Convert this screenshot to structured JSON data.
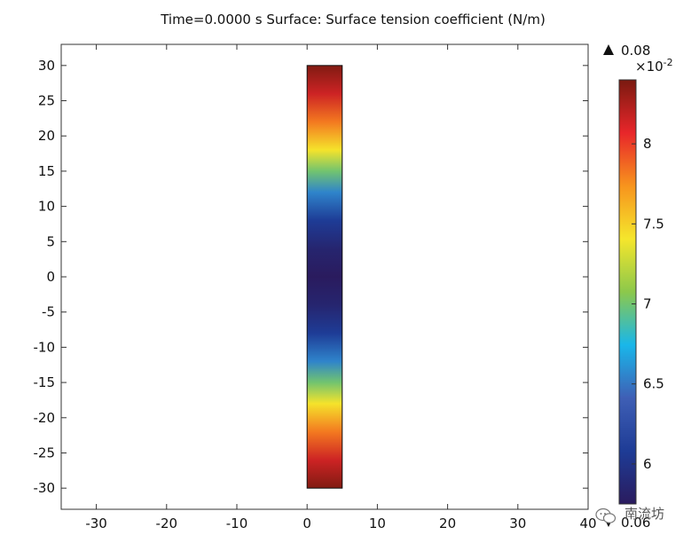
{
  "chart_data": {
    "type": "heatmap",
    "title": "Time=0.0000 s   Surface: Surface tension coefficient (N/m)",
    "x_ticks": [
      -30,
      -20,
      -10,
      0,
      10,
      20,
      30,
      40
    ],
    "y_ticks": [
      30,
      25,
      20,
      15,
      10,
      5,
      0,
      -5,
      -10,
      -15,
      -20,
      -25,
      -30
    ],
    "x_range": [
      -35,
      40
    ],
    "y_range": [
      -33,
      33
    ],
    "domain": {
      "x": [
        0,
        5
      ],
      "y": [
        -30,
        30
      ]
    },
    "field_profile": {
      "y": [
        -30,
        -26,
        -22,
        -18,
        -15,
        -12,
        -8,
        -4,
        0,
        4,
        8,
        12,
        15,
        18,
        22,
        26,
        30
      ],
      "value": [
        0.0838,
        0.0815,
        0.0782,
        0.0742,
        0.07,
        0.0655,
        0.0608,
        0.0585,
        0.0575,
        0.0585,
        0.0608,
        0.0655,
        0.07,
        0.0742,
        0.0782,
        0.0815,
        0.0838
      ]
    },
    "colorbar": {
      "max_label": "0.08",
      "min_label": "0.06",
      "exponent_label": "×10",
      "exponent_power": "-2",
      "ticks": [
        "8",
        "7.5",
        "7",
        "6.5",
        "6"
      ],
      "tick_values": [
        8,
        7.5,
        7,
        6.5,
        6
      ],
      "range": [
        5.75,
        8.4
      ],
      "colormap": "rainbow",
      "max_marker": "up-triangle",
      "min_marker": "down-triangle"
    },
    "colors": {
      "colormap_stops": [
        "#2a1b5e",
        "#1e3c96",
        "#3f5fb5",
        "#19b7ea",
        "#8cc84b",
        "#f5e62c",
        "#f7941d",
        "#e8262a",
        "#7a1a10"
      ],
      "axis": "#333333"
    }
  },
  "watermark": {
    "text": "南流坊",
    "icon": "wechat-icon"
  }
}
